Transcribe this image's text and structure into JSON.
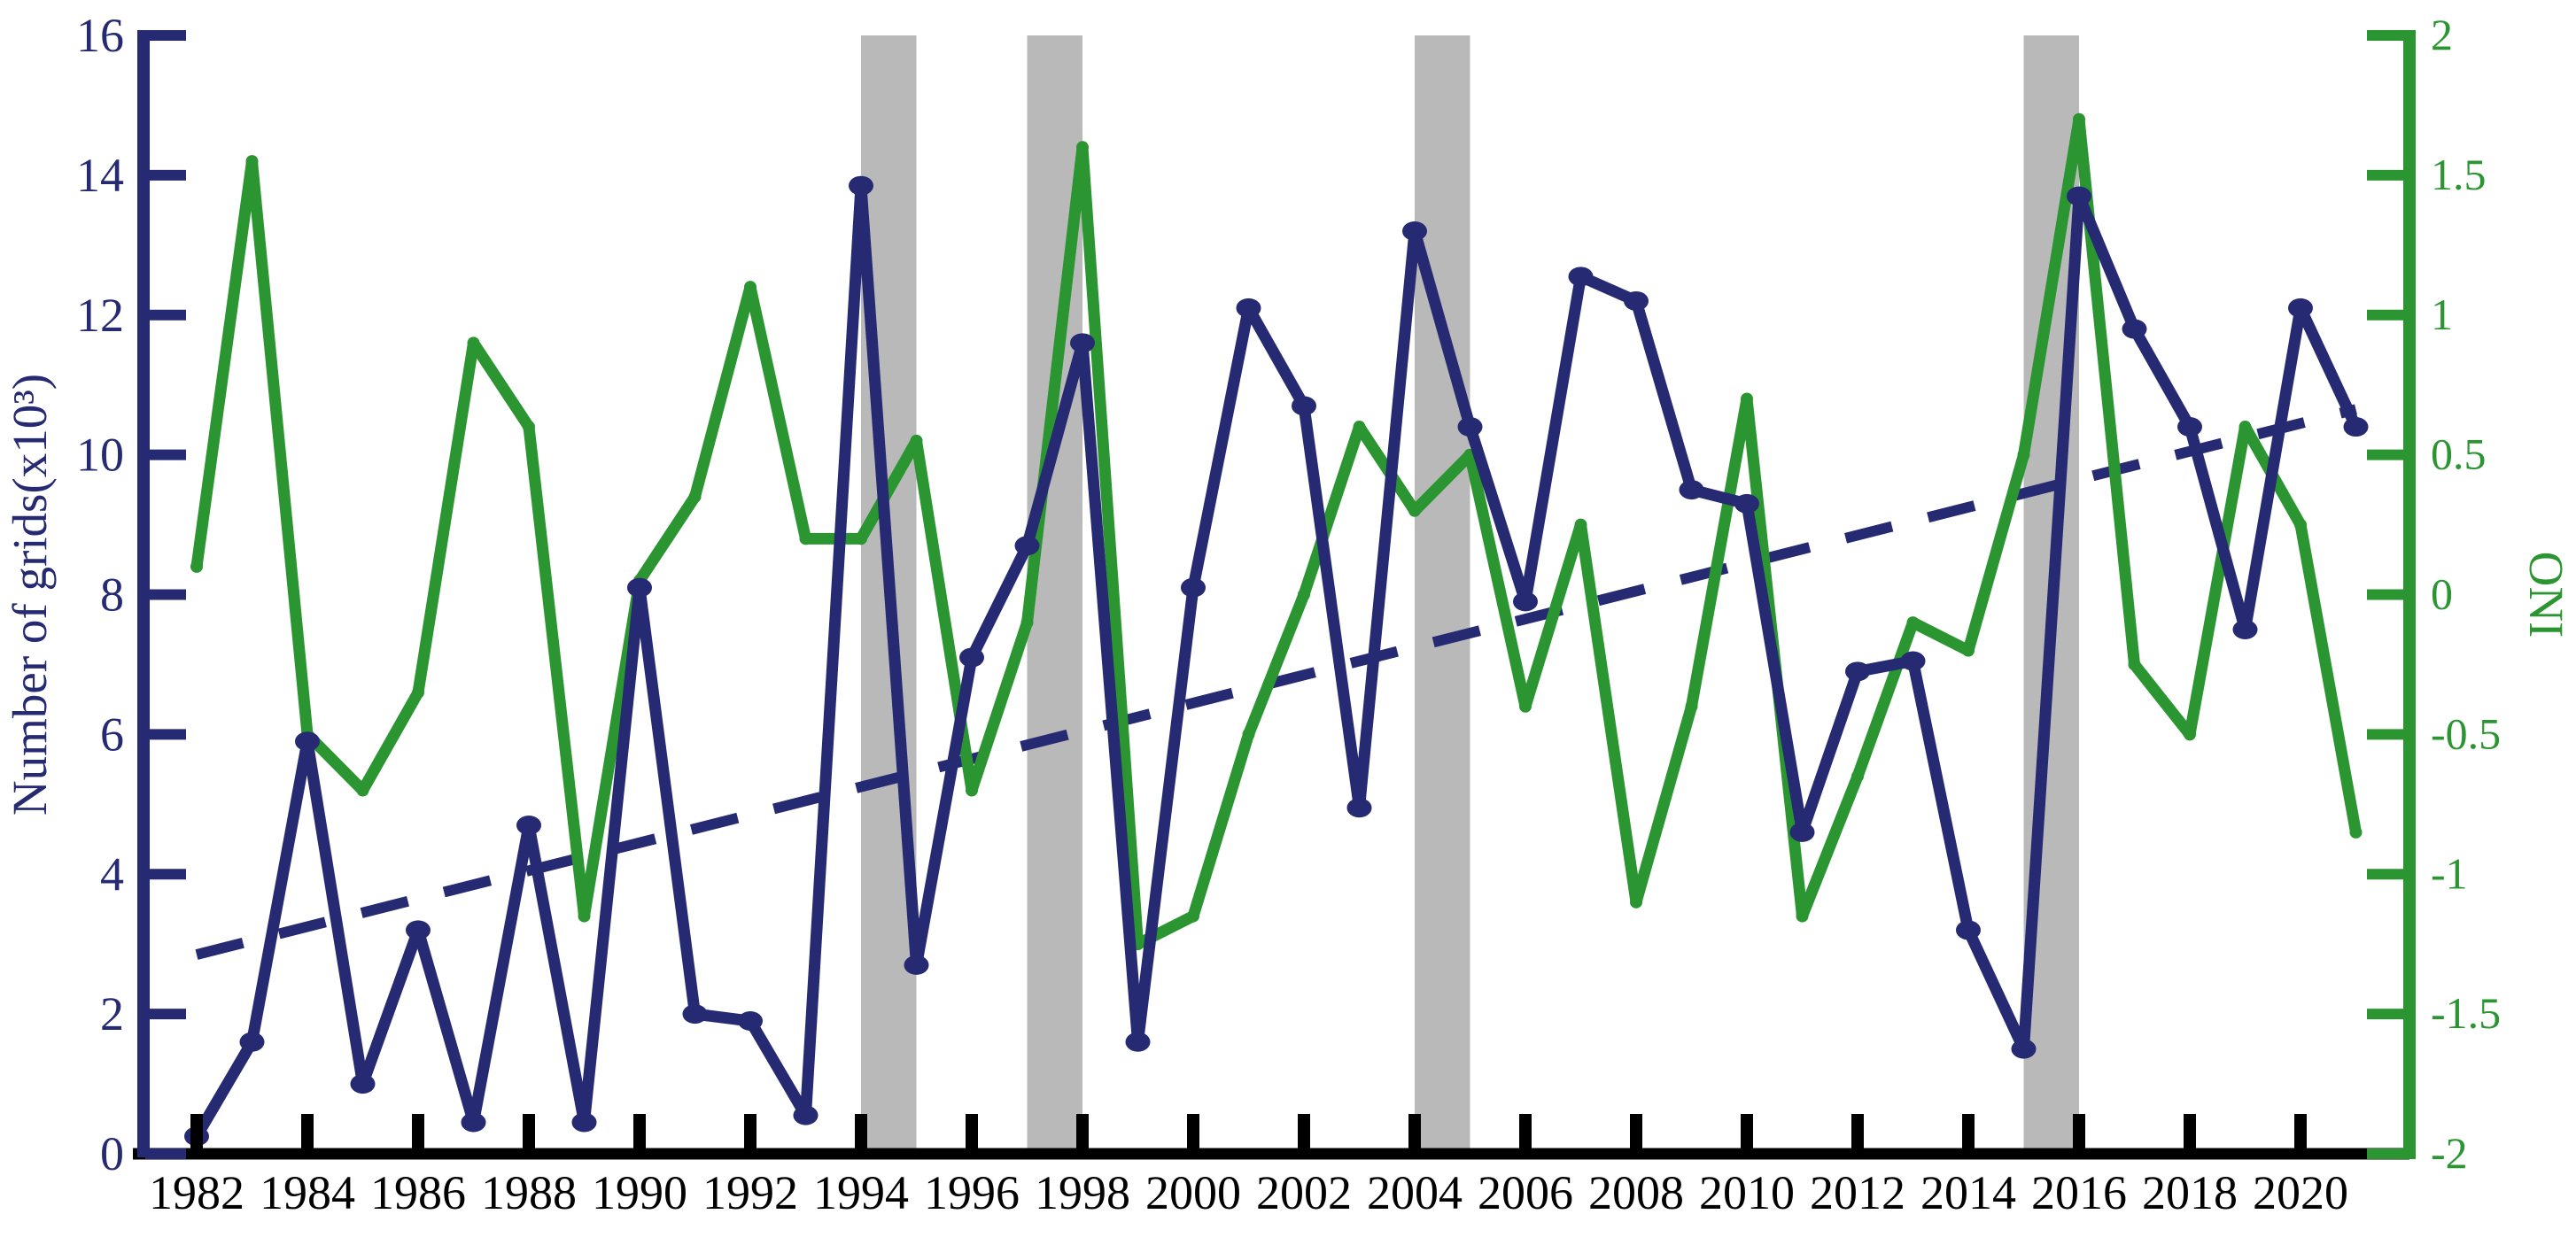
{
  "figure": {
    "left_axis_title": "Number of grids(x10³)",
    "right_axis_title": "ONI",
    "colors": {
      "grids_line": "#262a72",
      "oni_line": "#2b9631",
      "trend_line": "#262a72",
      "el_nino_band": "#b9b9b9",
      "x_axis": "#000000"
    }
  },
  "chart_data": {
    "type": "line",
    "title": "",
    "xlabel": "",
    "x_years": [
      1982,
      1983,
      1984,
      1985,
      1986,
      1987,
      1988,
      1989,
      1990,
      1991,
      1992,
      1993,
      1994,
      1995,
      1996,
      1997,
      1998,
      1999,
      2000,
      2001,
      2002,
      2003,
      2004,
      2005,
      2006,
      2007,
      2008,
      2009,
      2010,
      2011,
      2012,
      2013,
      2014,
      2015,
      2016,
      2017,
      2018,
      2019,
      2020,
      2021
    ],
    "series": [
      {
        "name": "Number of grids (x10^3)",
        "axis": "left",
        "marker": "circle",
        "color": "#262a72",
        "values": [
          0.25,
          1.6,
          5.9,
          1.0,
          3.2,
          0.45,
          4.7,
          0.45,
          8.1,
          2.0,
          1.9,
          0.55,
          13.85,
          2.7,
          7.1,
          8.7,
          11.6,
          1.6,
          8.1,
          12.1,
          10.7,
          4.95,
          13.2,
          10.4,
          7.9,
          12.55,
          12.2,
          9.5,
          9.3,
          4.6,
          6.9,
          7.05,
          3.2,
          1.5,
          13.7,
          11.8,
          10.4,
          7.5,
          12.1,
          10.4
        ]
      },
      {
        "name": "ONI",
        "axis": "right",
        "marker": "none",
        "color": "#2b9631",
        "values": [
          0.1,
          1.55,
          -0.5,
          -0.7,
          -0.35,
          0.9,
          0.6,
          -1.15,
          0.05,
          0.35,
          1.1,
          0.2,
          0.2,
          0.55,
          -0.7,
          -0.1,
          1.6,
          -1.25,
          -1.15,
          -0.5,
          0.0,
          0.6,
          0.3,
          0.5,
          -0.4,
          0.25,
          -1.1,
          -0.4,
          0.7,
          -1.15,
          -0.65,
          -0.1,
          -0.2,
          0.5,
          1.7,
          -0.25,
          -0.5,
          0.6,
          0.25,
          -0.85
        ]
      }
    ],
    "trend": {
      "name": "linear trend of number of grids",
      "style": "dashed",
      "axis": "left",
      "start_year": 1982,
      "start_value": 2.85,
      "end_year": 2021,
      "end_value": 10.65
    },
    "highlight_bands": {
      "name": "el-nino-year-bands",
      "intervals": [
        [
          1994,
          1995
        ],
        [
          1997,
          1998
        ],
        [
          2004,
          2005
        ],
        [
          2015,
          2016
        ]
      ]
    },
    "left_axis": {
      "label": "Number of grids(x10³)",
      "range": [
        0,
        16
      ],
      "tick_labels": [
        "0",
        "2",
        "4",
        "6",
        "8",
        "10",
        "12",
        "14",
        "16"
      ]
    },
    "right_axis": {
      "label": "ONI",
      "range": [
        -2,
        2
      ],
      "tick_labels": [
        "-2",
        "-1.5",
        "-1",
        "-0.5",
        "0",
        "0.5",
        "1",
        "1.5",
        "2"
      ]
    },
    "x_axis": {
      "tick_labels": [
        "1982",
        "1984",
        "1986",
        "1988",
        "1990",
        "1992",
        "1994",
        "1996",
        "1998",
        "2000",
        "2002",
        "2004",
        "2006",
        "2008",
        "2010",
        "2012",
        "2014",
        "2016",
        "2018",
        "2020"
      ]
    },
    "legend_position": "none",
    "grid": false
  }
}
